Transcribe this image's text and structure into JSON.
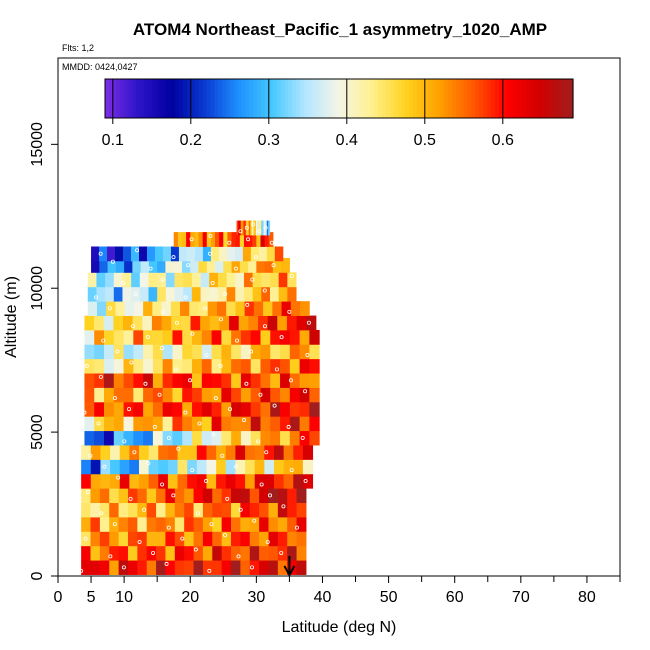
{
  "chart_data": {
    "type": "heatmap",
    "title": "ATOM4 Northeast_Pacific_1 asymmetry_1020_AMP",
    "subtitle_flights": "Flts: 1,2",
    "subtitle_dates": "MMDD: 0424,0427",
    "xlabel": "Latitude (deg N)",
    "ylabel": "Altitude (m)",
    "xlim": [
      0,
      85
    ],
    "ylim": [
      0,
      18000
    ],
    "x_ticks": [
      0,
      5,
      10,
      20,
      30,
      40,
      50,
      60,
      70,
      80
    ],
    "x_tick_labels": [
      "0",
      "5",
      "10",
      "20",
      "30",
      "40",
      "50",
      "60",
      "70",
      "80"
    ],
    "y_ticks": [
      0,
      5000,
      10000,
      15000
    ],
    "y_tick_labels": [
      "0",
      "5000",
      "10000",
      "15000"
    ],
    "colorbar": {
      "range": [
        0.09,
        0.69
      ],
      "ticks": [
        0.1,
        0.2,
        0.3,
        0.4,
        0.5,
        0.6
      ],
      "tick_labels": [
        "0.1",
        "0.2",
        "0.3",
        "0.4",
        "0.5",
        "0.6"
      ],
      "colors": [
        "#7e2ee6",
        "#2d14c8",
        "#0000a0",
        "#0a3cd2",
        "#1e90ff",
        "#46c8ff",
        "#b4e6ff",
        "#f5f5e6",
        "#fff08c",
        "#ffd21e",
        "#ffa000",
        "#ff5a00",
        "#ff0000",
        "#d20000",
        "#a01e1e"
      ]
    },
    "annotation": "downward arrow at 35 deg N near surface",
    "arrow_lat": 35,
    "bands": [
      {
        "alt": 300,
        "lat_min": 3.5,
        "lat_max": 37.5,
        "v_start": 0.6,
        "v_end": 0.62
      },
      {
        "alt": 800,
        "lat_min": 3.5,
        "lat_max": 37.5,
        "v_start": 0.55,
        "v_end": 0.6
      },
      {
        "alt": 1300,
        "lat_min": 3.5,
        "lat_max": 37.5,
        "v_start": 0.52,
        "v_end": 0.58
      },
      {
        "alt": 1800,
        "lat_min": 3.5,
        "lat_max": 37.5,
        "v_start": 0.5,
        "v_end": 0.56
      },
      {
        "alt": 2300,
        "lat_min": 3.5,
        "lat_max": 37.5,
        "v_start": 0.45,
        "v_end": 0.6
      },
      {
        "alt": 2800,
        "lat_min": 3.5,
        "lat_max": 37.5,
        "v_start": 0.48,
        "v_end": 0.68
      },
      {
        "alt": 3300,
        "lat_min": 3.5,
        "lat_max": 38.5,
        "v_start": 0.52,
        "v_end": 0.62
      },
      {
        "alt": 3800,
        "lat_min": 3.5,
        "lat_max": 38.5,
        "v_start": 0.25,
        "v_end": 0.5
      },
      {
        "alt": 4300,
        "lat_min": 3.5,
        "lat_max": 38.5,
        "v_start": 0.45,
        "v_end": 0.62
      },
      {
        "alt": 4800,
        "lat_min": 4,
        "lat_max": 39.5,
        "v_start": 0.2,
        "v_end": 0.58
      },
      {
        "alt": 5300,
        "lat_min": 4,
        "lat_max": 39.5,
        "v_start": 0.45,
        "v_end": 0.62
      },
      {
        "alt": 5800,
        "lat_min": 4,
        "lat_max": 39.5,
        "v_start": 0.55,
        "v_end": 0.62
      },
      {
        "alt": 6300,
        "lat_min": 4,
        "lat_max": 39.5,
        "v_start": 0.5,
        "v_end": 0.6
      },
      {
        "alt": 6800,
        "lat_min": 4,
        "lat_max": 39.5,
        "v_start": 0.6,
        "v_end": 0.55
      },
      {
        "alt": 7300,
        "lat_min": 4,
        "lat_max": 39.5,
        "v_start": 0.4,
        "v_end": 0.58
      },
      {
        "alt": 7800,
        "lat_min": 4,
        "lat_max": 39.5,
        "v_start": 0.35,
        "v_end": 0.52
      },
      {
        "alt": 8300,
        "lat_min": 4,
        "lat_max": 39.5,
        "v_start": 0.45,
        "v_end": 0.6
      },
      {
        "alt": 8800,
        "lat_min": 4,
        "lat_max": 39,
        "v_start": 0.42,
        "v_end": 0.62
      },
      {
        "alt": 9300,
        "lat_min": 4.5,
        "lat_max": 38,
        "v_start": 0.38,
        "v_end": 0.58
      },
      {
        "alt": 9800,
        "lat_min": 4.5,
        "lat_max": 36,
        "v_start": 0.3,
        "v_end": 0.52
      },
      {
        "alt": 10300,
        "lat_min": 4.5,
        "lat_max": 36,
        "v_start": 0.35,
        "v_end": 0.5
      },
      {
        "alt": 10800,
        "lat_min": 5,
        "lat_max": 35,
        "v_start": 0.22,
        "v_end": 0.55
      },
      {
        "alt": 11200,
        "lat_min": 5,
        "lat_max": 34,
        "v_start": 0.15,
        "v_end": 0.5
      },
      {
        "alt": 11700,
        "lat_min": 17.5,
        "lat_max": 32.5,
        "v_start": 0.52,
        "v_end": 0.58
      },
      {
        "alt": 12100,
        "lat_min": 27,
        "lat_max": 32,
        "v_start": 0.62,
        "v_end": 0.3
      }
    ]
  }
}
